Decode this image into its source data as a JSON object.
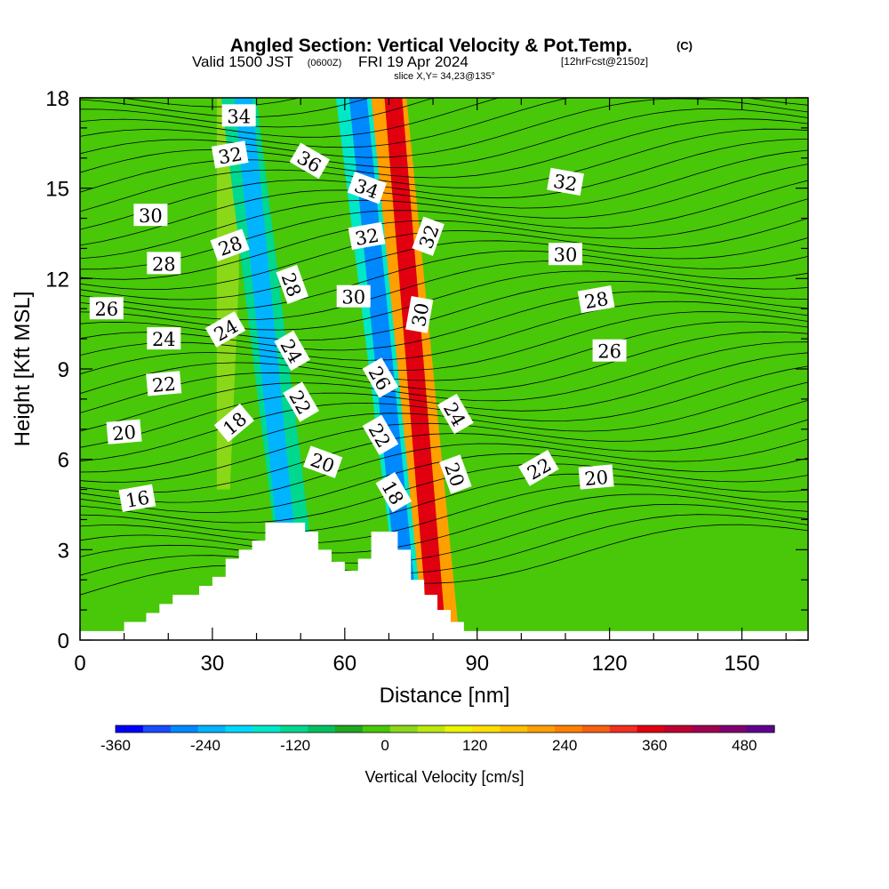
{
  "header": {
    "title": "Angled Section: Vertical Velocity & Pot.Temp.",
    "copyright": "(C)",
    "valid_prefix": "Valid 1500 JST",
    "valid_utc": "(0600Z)",
    "valid_date": "FRI 19 Apr 2024",
    "valid_run": "[12hrFcst@2150z]",
    "slice": "slice X,Y= 34,23@135°"
  },
  "chart_data": {
    "type": "heatmap",
    "title": "Angled Section: Vertical Velocity & Pot.Temp.",
    "xlabel": "Distance [nm]",
    "ylabel": "Height [Kft MSL]",
    "xlim": [
      0,
      165
    ],
    "ylim": [
      0,
      18
    ],
    "x_ticks": [
      0,
      30,
      60,
      90,
      120,
      150
    ],
    "y_ticks": [
      0,
      3,
      6,
      9,
      12,
      15,
      18
    ],
    "grid": false,
    "colorbar": {
      "title": "Vertical Velocity [cm/s]",
      "range": [
        -360,
        520
      ],
      "step": 40,
      "tick_values": [
        -360,
        -240,
        -120,
        0,
        120,
        240,
        360,
        480
      ],
      "colors": [
        "#0000ff",
        "#1a4cff",
        "#0088ff",
        "#00b4ff",
        "#00d8ff",
        "#00e8c8",
        "#00d890",
        "#00c060",
        "#20a820",
        "#48c808",
        "#8ad818",
        "#bce810",
        "#ecf400",
        "#ffe000",
        "#ffc000",
        "#ffa000",
        "#ff8000",
        "#f86010",
        "#f03020",
        "#e00010",
        "#c00030",
        "#a00050",
        "#800070",
        "#600090"
      ]
    },
    "wind_bands": [
      {
        "name": "downdraft-west",
        "x_ref": [
          51,
          0
        ],
        "x_top": [
          36,
          18
        ],
        "half_width": 4,
        "level": -120
      },
      {
        "name": "downdraft-west-core",
        "x_ref": [
          49,
          0
        ],
        "x_top": [
          37,
          18
        ],
        "half_width": 2,
        "level": -240
      },
      {
        "name": "downdraft-east",
        "x_ref": [
          77,
          0
        ],
        "x_top": [
          62,
          18
        ],
        "half_width": 4,
        "level": -160
      },
      {
        "name": "downdraft-east-core",
        "x_ref": [
          75,
          0
        ],
        "x_top": [
          63,
          18
        ],
        "half_width": 2,
        "level": -280
      },
      {
        "name": "updraft-main",
        "x_ref": [
          82,
          0
        ],
        "x_top": [
          70,
          18
        ],
        "half_width": 4,
        "level": 240
      },
      {
        "name": "updraft-core",
        "x_ref": [
          81,
          0
        ],
        "x_top": [
          71,
          18
        ],
        "half_width": 2,
        "level": 400
      }
    ],
    "terrain_kft": [
      [
        0,
        0.3
      ],
      [
        10,
        0.3
      ],
      [
        10,
        0.6
      ],
      [
        15,
        0.6
      ],
      [
        15,
        0.9
      ],
      [
        18,
        0.9
      ],
      [
        18,
        1.2
      ],
      [
        21,
        1.2
      ],
      [
        21,
        1.5
      ],
      [
        27,
        1.5
      ],
      [
        27,
        1.8
      ],
      [
        30,
        1.8
      ],
      [
        30,
        2.1
      ],
      [
        33,
        2.1
      ],
      [
        33,
        2.7
      ],
      [
        36,
        2.7
      ],
      [
        36,
        3.0
      ],
      [
        39,
        3.0
      ],
      [
        39,
        3.3
      ],
      [
        42,
        3.3
      ],
      [
        42,
        3.9
      ],
      [
        51,
        3.9
      ],
      [
        51,
        3.6
      ],
      [
        54,
        3.6
      ],
      [
        54,
        3.0
      ],
      [
        57,
        3.0
      ],
      [
        57,
        2.6
      ],
      [
        60,
        2.6
      ],
      [
        60,
        2.3
      ],
      [
        63,
        2.3
      ],
      [
        63,
        2.7
      ],
      [
        66,
        2.7
      ],
      [
        66,
        3.6
      ],
      [
        72,
        3.6
      ],
      [
        72,
        3.0
      ],
      [
        75,
        3.0
      ],
      [
        75,
        2.0
      ],
      [
        78,
        2.0
      ],
      [
        78,
        1.5
      ],
      [
        81,
        1.5
      ],
      [
        81,
        1.0
      ],
      [
        84,
        1.0
      ],
      [
        84,
        0.6
      ],
      [
        87,
        0.6
      ],
      [
        87,
        0.3
      ],
      [
        165,
        0.3
      ]
    ],
    "potential_temperature_labels": [
      {
        "text": "34",
        "x": 36,
        "y": 17.4,
        "angle": 0
      },
      {
        "text": "32",
        "x": 34,
        "y": 16.1,
        "angle": -10
      },
      {
        "text": "36",
        "x": 52,
        "y": 15.9,
        "angle": 30
      },
      {
        "text": "34",
        "x": 65,
        "y": 15.0,
        "angle": 20
      },
      {
        "text": "32",
        "x": 110,
        "y": 15.2,
        "angle": 10
      },
      {
        "text": "30",
        "x": 16,
        "y": 14.1,
        "angle": 0
      },
      {
        "text": "32",
        "x": 65,
        "y": 13.4,
        "angle": -10
      },
      {
        "text": "32",
        "x": 79,
        "y": 13.4,
        "angle": -70
      },
      {
        "text": "28",
        "x": 34,
        "y": 13.1,
        "angle": -20
      },
      {
        "text": "30",
        "x": 110,
        "y": 12.8,
        "angle": 0
      },
      {
        "text": "28",
        "x": 19,
        "y": 12.5,
        "angle": 0
      },
      {
        "text": "28",
        "x": 48,
        "y": 11.8,
        "angle": 70
      },
      {
        "text": "30",
        "x": 62,
        "y": 11.4,
        "angle": 0
      },
      {
        "text": "28",
        "x": 117,
        "y": 11.3,
        "angle": -10
      },
      {
        "text": "26",
        "x": 6,
        "y": 11.0,
        "angle": 0
      },
      {
        "text": "30",
        "x": 77,
        "y": 10.8,
        "angle": -80
      },
      {
        "text": "24",
        "x": 33,
        "y": 10.3,
        "angle": -30
      },
      {
        "text": "24",
        "x": 19,
        "y": 10.0,
        "angle": 0
      },
      {
        "text": "24",
        "x": 48,
        "y": 9.6,
        "angle": 60
      },
      {
        "text": "26",
        "x": 120,
        "y": 9.6,
        "angle": 0
      },
      {
        "text": "26",
        "x": 68,
        "y": 8.7,
        "angle": 60
      },
      {
        "text": "22",
        "x": 19,
        "y": 8.5,
        "angle": -5
      },
      {
        "text": "22",
        "x": 50,
        "y": 7.9,
        "angle": 60
      },
      {
        "text": "24",
        "x": 85,
        "y": 7.5,
        "angle": 60
      },
      {
        "text": "18",
        "x": 35,
        "y": 7.2,
        "angle": -40
      },
      {
        "text": "20",
        "x": 10,
        "y": 6.9,
        "angle": -5
      },
      {
        "text": "22",
        "x": 68,
        "y": 6.8,
        "angle": 60
      },
      {
        "text": "20",
        "x": 55,
        "y": 5.9,
        "angle": 20
      },
      {
        "text": "22",
        "x": 104,
        "y": 5.7,
        "angle": -30
      },
      {
        "text": "20",
        "x": 85,
        "y": 5.5,
        "angle": 70
      },
      {
        "text": "20",
        "x": 117,
        "y": 5.4,
        "angle": -5
      },
      {
        "text": "16",
        "x": 13,
        "y": 4.7,
        "angle": -10
      },
      {
        "text": "18",
        "x": 71,
        "y": 4.9,
        "angle": 60
      }
    ]
  }
}
